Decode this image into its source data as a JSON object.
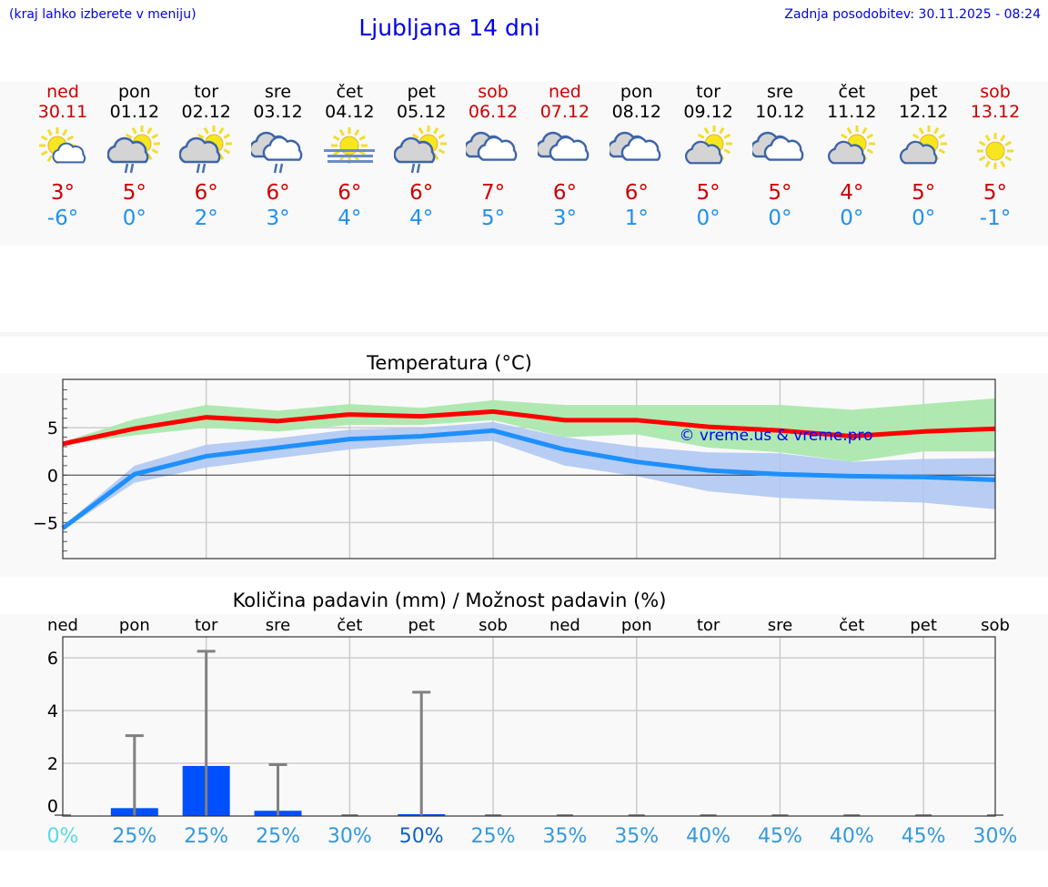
{
  "header": {
    "hint": "(kraj lahko izberete v meniju)",
    "title": "Ljubljana 14 dni",
    "updated": "Zadnja posodobitev: 30.11.2025 - 08:24"
  },
  "days": [
    {
      "name": "ned",
      "date": "30.11",
      "weekend": true,
      "icon": "sun-small-cloud-icon",
      "tmax": "3°",
      "tmin": "-6°"
    },
    {
      "name": "pon",
      "date": "01.12",
      "weekend": false,
      "icon": "sun-cloud-rain-icon",
      "tmax": "5°",
      "tmin": "0°"
    },
    {
      "name": "tor",
      "date": "02.12",
      "weekend": false,
      "icon": "sun-cloud-rain-icon",
      "tmax": "6°",
      "tmin": "2°"
    },
    {
      "name": "sre",
      "date": "03.12",
      "weekend": false,
      "icon": "cloudy-rain-icon",
      "tmax": "6°",
      "tmin": "3°"
    },
    {
      "name": "čet",
      "date": "04.12",
      "weekend": false,
      "icon": "sun-fog-icon",
      "tmax": "6°",
      "tmin": "4°"
    },
    {
      "name": "pet",
      "date": "05.12",
      "weekend": false,
      "icon": "sun-cloud-rain-icon",
      "tmax": "6°",
      "tmin": "4°"
    },
    {
      "name": "sob",
      "date": "06.12",
      "weekend": true,
      "icon": "cloudy-icon",
      "tmax": "7°",
      "tmin": "5°"
    },
    {
      "name": "ned",
      "date": "07.12",
      "weekend": true,
      "icon": "cloudy-icon",
      "tmax": "6°",
      "tmin": "3°"
    },
    {
      "name": "pon",
      "date": "08.12",
      "weekend": false,
      "icon": "cloudy-icon",
      "tmax": "6°",
      "tmin": "1°"
    },
    {
      "name": "tor",
      "date": "09.12",
      "weekend": false,
      "icon": "partly-cloudy-icon",
      "tmax": "5°",
      "tmin": "0°"
    },
    {
      "name": "sre",
      "date": "10.12",
      "weekend": false,
      "icon": "cloudy-icon",
      "tmax": "5°",
      "tmin": "0°"
    },
    {
      "name": "čet",
      "date": "11.12",
      "weekend": false,
      "icon": "partly-cloudy-icon",
      "tmax": "4°",
      "tmin": "0°"
    },
    {
      "name": "pet",
      "date": "12.12",
      "weekend": false,
      "icon": "partly-cloudy-icon",
      "tmax": "5°",
      "tmin": "0°"
    },
    {
      "name": "sob",
      "date": "13.12",
      "weekend": true,
      "icon": "sun-icon",
      "tmax": "5°",
      "tmin": "-1°"
    }
  ],
  "colors": {
    "max": "#ff0000",
    "min": "#1e90ff",
    "max_band": "#abe8ad",
    "min_band": "#adc6f2",
    "bar": "#0050ff",
    "whisker": "#808080"
  },
  "chart_data": [
    {
      "type": "line",
      "title": "Temperatura (°C)",
      "ylim": [
        -8.8,
        10.1
      ],
      "yticks": [
        "5",
        "0",
        "−5"
      ],
      "grid": true,
      "watermark": "© vreme.us & vreme.pro",
      "series": [
        {
          "values": [
            3.3,
            4.9,
            6.1,
            5.7,
            6.4,
            6.2,
            6.7,
            5.8,
            5.8,
            5.1,
            4.7,
            4.1,
            4.6,
            4.9
          ],
          "band_high": [
            3.5,
            5.9,
            7.4,
            6.8,
            7.5,
            7.1,
            7.9,
            7.4,
            7.4,
            7.4,
            7.4,
            6.9,
            7.5,
            8.1
          ],
          "band_low": [
            3.2,
            4.2,
            5.0,
            4.6,
            5.3,
            5.3,
            5.8,
            4.0,
            4.3,
            2.9,
            2.4,
            1.4,
            2.5,
            2.5
          ]
        },
        {
          "values": [
            -5.6,
            0.1,
            2.0,
            2.9,
            3.8,
            4.1,
            4.7,
            2.7,
            1.4,
            0.5,
            0.1,
            -0.1,
            -0.2,
            -0.5
          ],
          "band_high": [
            -5.4,
            1.0,
            3.2,
            3.9,
            4.8,
            5.0,
            5.6,
            4.0,
            3.0,
            2.4,
            2.3,
            1.4,
            1.7,
            1.8
          ],
          "band_low": [
            -5.8,
            -0.8,
            0.8,
            1.8,
            2.7,
            3.3,
            3.6,
            1.0,
            -0.1,
            -1.7,
            -2.4,
            -2.7,
            -2.9,
            -3.6
          ]
        }
      ]
    },
    {
      "type": "bar",
      "title": "Količina padavin (mm) / Možnost padavin (%)",
      "ylim": [
        0,
        6.8
      ],
      "yticks": [
        "6",
        "4",
        "2",
        "0"
      ],
      "grid": true,
      "categories": [
        "ned",
        "pon",
        "tor",
        "sre",
        "čet",
        "pet",
        "sob",
        "ned",
        "pon",
        "tor",
        "sre",
        "čet",
        "pet",
        "sob"
      ],
      "values": [
        0,
        0.3,
        1.9,
        0.2,
        0,
        0.07,
        0,
        0,
        0,
        0,
        0,
        0,
        0,
        0
      ],
      "error_high": [
        0,
        3.05,
        6.25,
        1.95,
        0,
        4.7,
        0,
        0,
        0,
        0,
        0,
        0,
        0,
        0
      ],
      "probability": [
        "0%",
        "25%",
        "25%",
        "25%",
        "30%",
        "50%",
        "25%",
        "35%",
        "35%",
        "40%",
        "45%",
        "40%",
        "45%",
        "30%"
      ],
      "probability_colors": [
        "#5bd8e8",
        "#3399dd",
        "#3399dd",
        "#3399dd",
        "#3399dd",
        "#1060c0",
        "#3399dd",
        "#3399dd",
        "#3399dd",
        "#3399dd",
        "#3399dd",
        "#3399dd",
        "#3399dd",
        "#3399dd"
      ]
    }
  ]
}
